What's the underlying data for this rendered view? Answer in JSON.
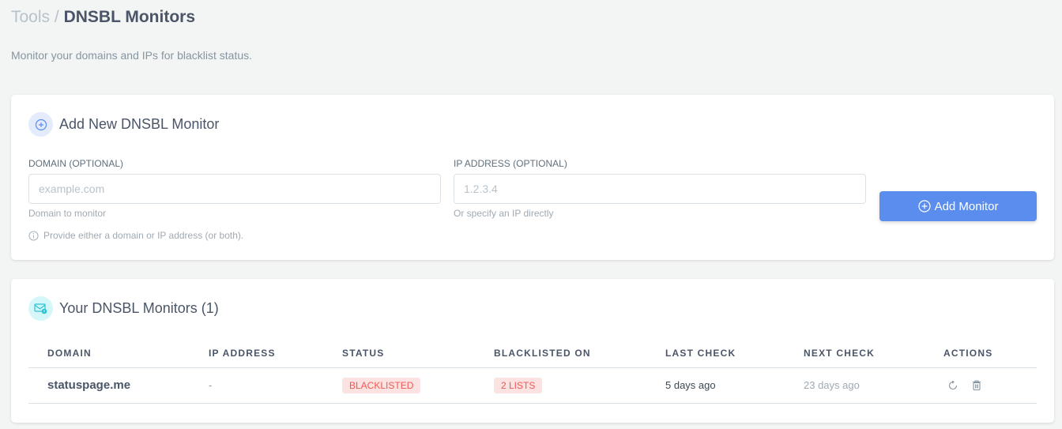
{
  "breadcrumb": {
    "parent": "Tools",
    "separator": "/",
    "current": "DNSBL Monitors"
  },
  "subtitle": "Monitor your domains and IPs for blacklist status.",
  "add_card": {
    "title": "Add New DNSBL Monitor",
    "domain": {
      "label": "DOMAIN (OPTIONAL)",
      "placeholder": "example.com",
      "value": "",
      "help": "Domain to monitor"
    },
    "ip": {
      "label": "IP ADDRESS (OPTIONAL)",
      "placeholder": "1.2.3.4",
      "value": "",
      "help": "Or specify an IP directly"
    },
    "note": "Provide either a domain or IP address (or both).",
    "button": "Add Monitor"
  },
  "list_card": {
    "title": "Your DNSBL Monitors (1)",
    "columns": [
      "DOMAIN",
      "IP ADDRESS",
      "STATUS",
      "BLACKLISTED ON",
      "LAST CHECK",
      "NEXT CHECK",
      "ACTIONS"
    ],
    "rows": [
      {
        "domain": "statuspage.me",
        "ip": "-",
        "status": "BLACKLISTED",
        "blacklisted_on": "2 LISTS",
        "last_check": "5 days ago",
        "next_check": "23 days ago"
      }
    ]
  },
  "colors": {
    "accent": "#5a8dee",
    "danger": "#ef5753",
    "danger_bg": "#fde2e2"
  }
}
